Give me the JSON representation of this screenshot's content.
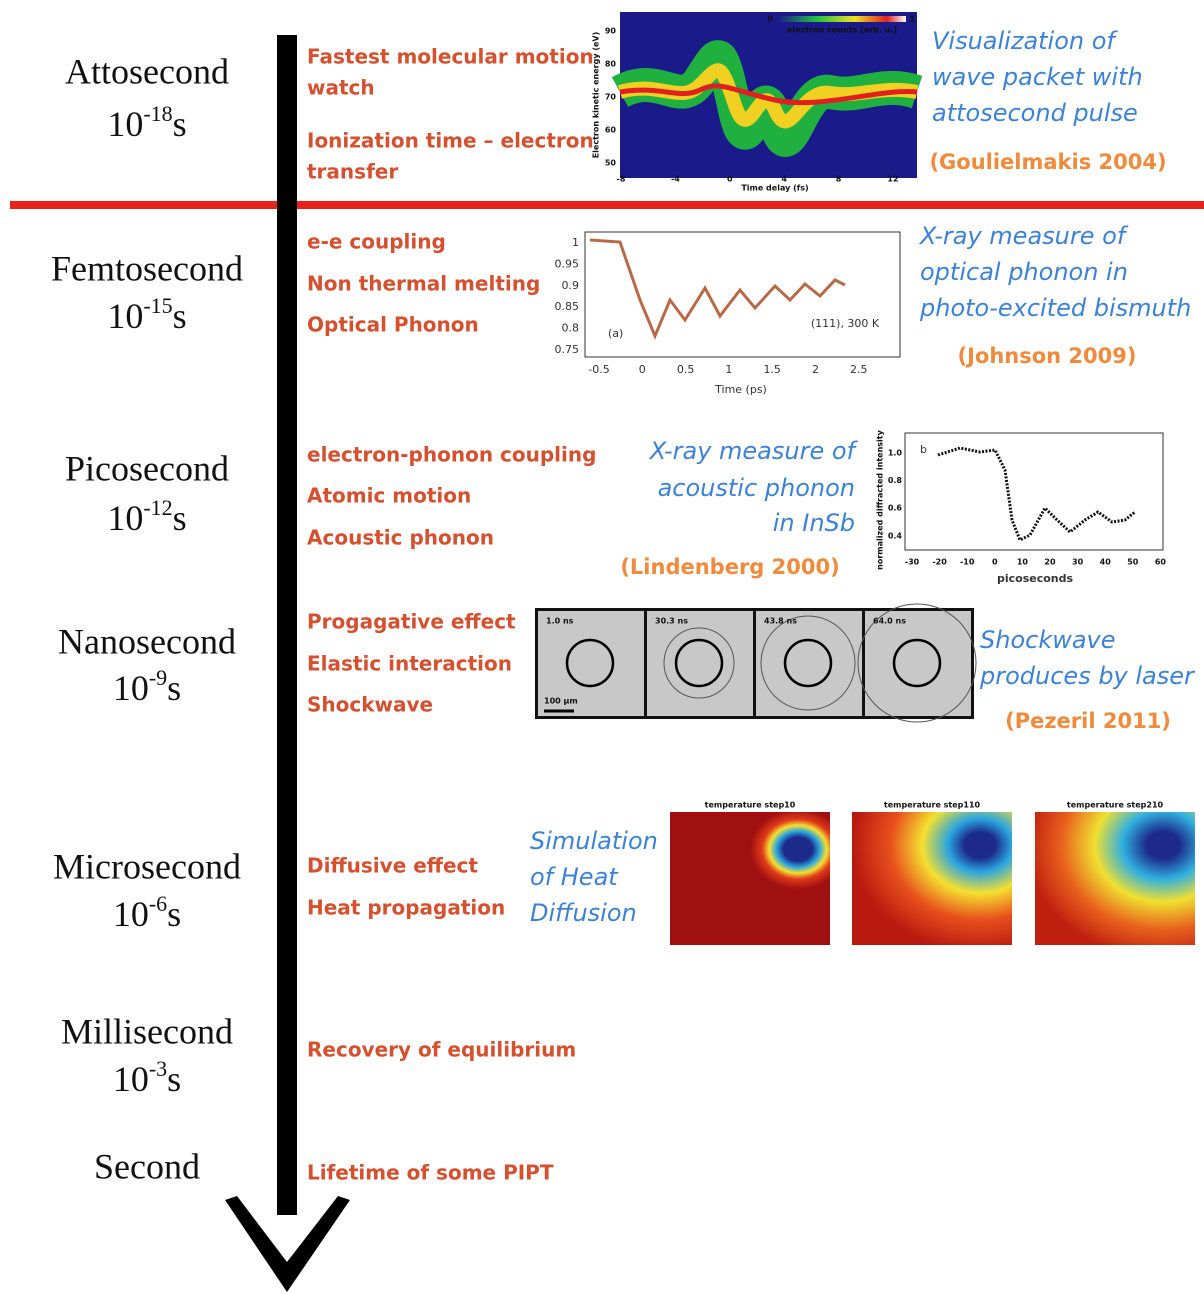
{
  "scales": [
    {
      "name": "Attosecond",
      "base": "10",
      "exponent": "-18",
      "unit": "s"
    },
    {
      "name": "Femtosecond",
      "base": "10",
      "exponent": "-15",
      "unit": "s"
    },
    {
      "name": "Picosecond",
      "base": "10",
      "exponent": "-12",
      "unit": "s"
    },
    {
      "name": "Nanosecond",
      "base": "10",
      "exponent": "-9",
      "unit": "s"
    },
    {
      "name": "Microsecond",
      "base": "10",
      "exponent": "-6",
      "unit": "s"
    },
    {
      "name": "Millisecond",
      "base": "10",
      "exponent": "-3",
      "unit": "s"
    },
    {
      "name": "Second"
    }
  ],
  "effects": [
    [
      "Fastest molecular motion",
      "watch",
      "Ionization time – electron",
      "transfer"
    ],
    [
      "e-e coupling",
      "Non thermal melting",
      "Optical Phonon"
    ],
    [
      "electron-phonon coupling",
      "Atomic motion",
      "Acoustic phonon"
    ],
    [
      "Progagative effect",
      "Elastic interaction",
      "Shockwave"
    ],
    [
      "Diffusive effect",
      "Heat propagation"
    ],
    [
      "Recovery of equilibrium"
    ],
    [
      "Lifetime of some PIPT"
    ]
  ],
  "captions": [
    {
      "lines": [
        "Visualization of",
        "wave packet with",
        "attosecond pulse"
      ],
      "reference": "(Goulielmakis 2004)"
    },
    {
      "lines": [
        "X-ray measure of",
        "optical phonon in",
        "photo-excited bismuth"
      ],
      "reference": "(Johnson 2009)"
    },
    {
      "lines": [
        "X-ray measure of",
        "acoustic phonon",
        "in InSb"
      ],
      "reference": "(Lindenberg 2000)"
    },
    {
      "lines": [
        "Shockwave",
        "produces by laser"
      ],
      "reference": "(Pezeril 2011)"
    },
    {
      "lines": [
        "Simulation",
        "of Heat",
        "Diffusion"
      ]
    }
  ],
  "figures": {
    "attosecond": {
      "y_label": "Electron kinetic energy (eV)",
      "x_label": "Time delay (fs)",
      "yticks": [
        "90",
        "80",
        "70",
        "60",
        "50"
      ],
      "xticks": [
        "-8",
        "-4",
        "0",
        "4",
        "8",
        "12"
      ],
      "colorbar_label": "electron counts [arb. u.]",
      "colorbar_ticks": [
        "0",
        "1"
      ]
    },
    "femtosecond": {
      "x_label": "Time (ps)",
      "yticks": [
        "1",
        "0.95",
        "0.9",
        "0.85",
        "0.8",
        "0.75"
      ],
      "xticks": [
        "-0.5",
        "0",
        "0.5",
        "1",
        "1.5",
        "2",
        "2.5"
      ],
      "panel": "(a)",
      "annotation": "(111), 300 K"
    },
    "picosecond": {
      "y_label": "normalized diffracted intensity",
      "x_label": "picoseconds",
      "yticks": [
        "1.0",
        "0.8",
        "0.6",
        "0.4"
      ],
      "xticks": [
        "-30",
        "-20",
        "-10",
        "0",
        "10",
        "20",
        "30",
        "40",
        "50",
        "60"
      ],
      "panel": "b"
    },
    "nanosecond": {
      "frames": [
        "1.0 ns",
        "30.3 ns",
        "43.8 ns",
        "64.0 ns"
      ],
      "scale_bar": "100 µm"
    },
    "microsecond": {
      "titles": [
        "temperature step10",
        "temperature step110",
        "temperature step210"
      ]
    }
  }
}
